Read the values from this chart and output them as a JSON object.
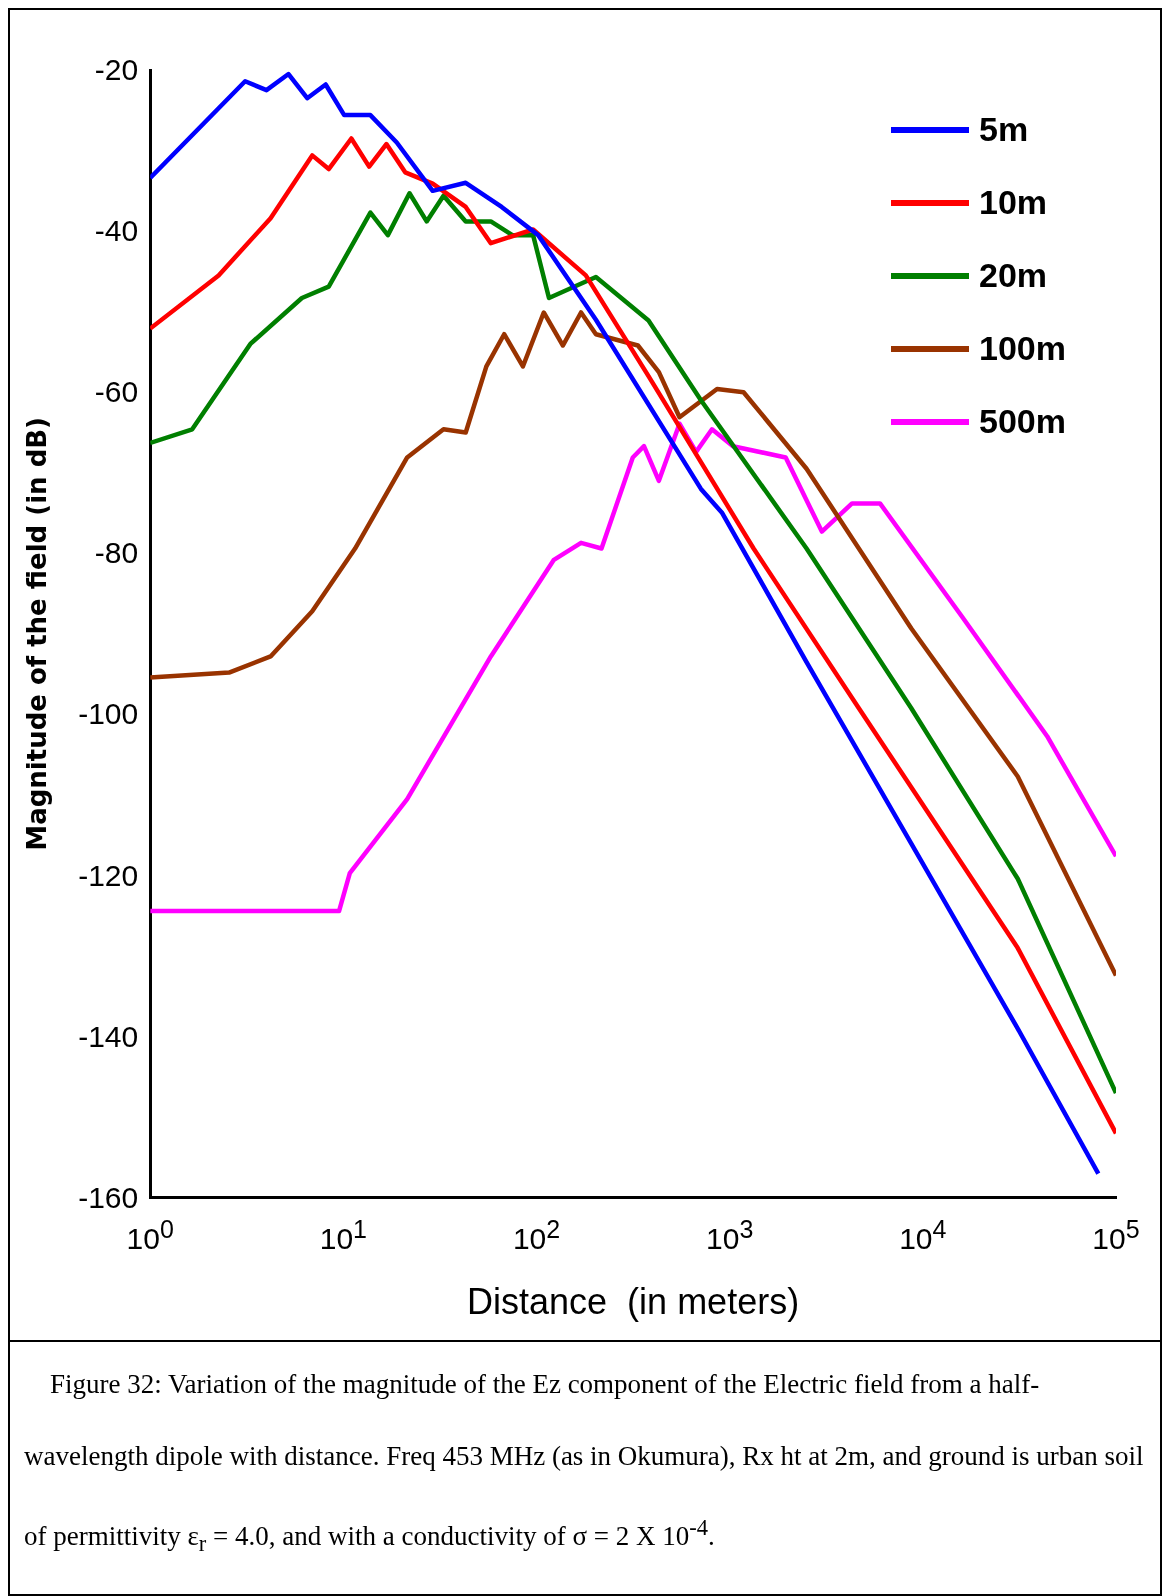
{
  "chart_data": {
    "type": "line",
    "xlabel": "Distance  (in meters)",
    "ylabel": "Magnitude of the field (in dB)",
    "log": "x",
    "xlim": [
      1,
      100000
    ],
    "ylim": [
      -160,
      -20
    ],
    "xticks": [
      {
        "value": 1,
        "label": "10$^{0}$"
      },
      {
        "value": 10,
        "label": "10$^{1}$"
      },
      {
        "value": 100,
        "label": "10$^{2}$"
      },
      {
        "value": 1000,
        "label": "10$^{3}$"
      },
      {
        "value": 10000,
        "label": "10$^{4}$"
      },
      {
        "value": 100000,
        "label": "10$^{5}$"
      }
    ],
    "yticks": [
      -20,
      -40,
      -60,
      -80,
      -100,
      -120,
      -140,
      -160
    ],
    "grid": false,
    "legend": "top right",
    "marker": "none",
    "line_style": "solid",
    "series": [
      {
        "name": "5m",
        "color": "#0000ff",
        "x": [
          1,
          3.1,
          4,
          5.2,
          6.5,
          8.1,
          10.1,
          13.8,
          18.9,
          29,
          43,
          66,
          102,
          203,
          710,
          915,
          2500,
          8700,
          31000,
          81000
        ],
        "values": [
          -33.4,
          -21.4,
          -22.5,
          -20.5,
          -23.5,
          -21.8,
          -25.6,
          -25.6,
          -29,
          -35,
          -34,
          -37,
          -40.5,
          -51,
          -72,
          -75,
          -93.5,
          -116,
          -139,
          -157
        ]
      },
      {
        "name": "10m",
        "color": "#ff0000",
        "x": [
          1,
          2.26,
          4.2,
          6.9,
          8.4,
          11,
          13.6,
          16.7,
          20.9,
          29,
          43,
          58,
          96,
          180,
          380,
          1330,
          4600,
          31000,
          100000
        ],
        "values": [
          -52.1,
          -45.5,
          -38.4,
          -30.6,
          -32.3,
          -28.5,
          -32,
          -29.2,
          -32.7,
          -34.1,
          -37,
          -41.5,
          -39.8,
          -45.5,
          -58,
          -79.4,
          -99,
          -129,
          -152
        ]
      },
      {
        "name": "20m",
        "color": "#007f00",
        "x": [
          1,
          1.65,
          3.3,
          6.1,
          8.4,
          13.8,
          17,
          22,
          27,
          33,
          43,
          58,
          75,
          96,
          116,
          203,
          380,
          710,
          2500,
          8700,
          31000,
          100000
        ],
        "values": [
          -66.3,
          -64.6,
          -54,
          -48.3,
          -46.9,
          -37.7,
          -40.5,
          -35.3,
          -38.8,
          -35.6,
          -38.8,
          -38.8,
          -40.5,
          -40.5,
          -48.3,
          -45.7,
          -51.1,
          -61,
          -79.4,
          -99.2,
          -120.4,
          -147
        ]
      },
      {
        "name": "100m",
        "color": "#993300",
        "x": [
          1,
          2.56,
          4.2,
          6.9,
          11.5,
          21.4,
          33,
          43,
          55,
          68,
          85,
          109,
          137,
          170,
          203,
          335,
          430,
          550,
          860,
          1180,
          2500,
          8700,
          31000,
          100000
        ],
        "values": [
          -95.4,
          -94.8,
          -92.8,
          -87.2,
          -79.4,
          -68.1,
          -64.6,
          -65,
          -56.8,
          -52.8,
          -56.8,
          -50.1,
          -54.2,
          -50.1,
          -52.8,
          -54.2,
          -57.5,
          -63.1,
          -59.6,
          -60,
          -69.5,
          -89.3,
          -107.7,
          -132.4
        ]
      },
      {
        "name": "500m",
        "color": "#ff00ff",
        "x": [
          1,
          9.5,
          10.8,
          21.4,
          58,
          123,
          170,
          217,
          315,
          360,
          430,
          550,
          670,
          810,
          1040,
          1950,
          3000,
          4300,
          6000,
          16000,
          44000,
          100000
        ],
        "values": [
          -124.4,
          -124.4,
          -119.7,
          -110.5,
          -92.8,
          -80.8,
          -78.7,
          -79.4,
          -68.1,
          -66.7,
          -71,
          -63.9,
          -67.4,
          -64.6,
          -66.7,
          -68.1,
          -77.3,
          -73.8,
          -73.8,
          -87.9,
          -102.7,
          -117.6
        ]
      }
    ],
    "annotations": [
      "Figure 32: Variation of the magnitude of the Ez component of the Electric field from a half-wavelength dipole with distance. Freq 453 MHz (as in Okumura), Rx ht at 2m, and ground is urban soil of permittivity ε$_{r}$ = 4.0, and with a conductivity of σ = 2 X 10$^{-4}$."
    ]
  }
}
